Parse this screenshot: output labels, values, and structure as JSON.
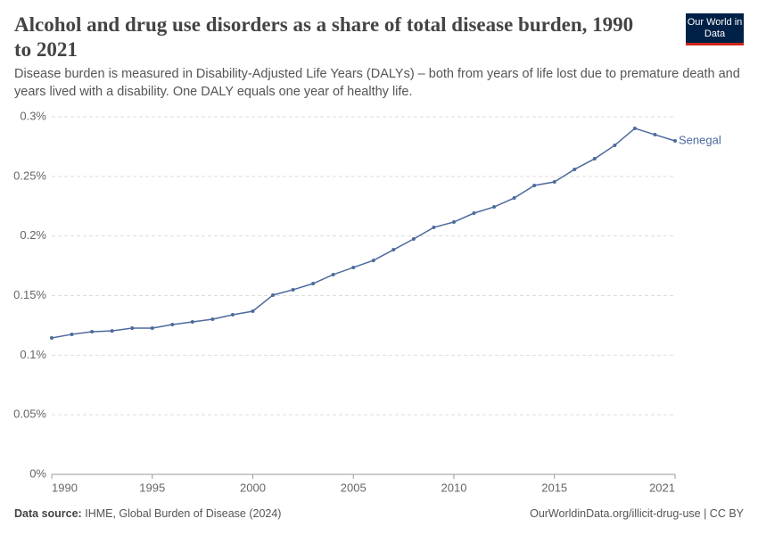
{
  "chart_data": {
    "type": "line",
    "title": "Alcohol and drug use disorders as a share of total disease burden, 1990 to 2021",
    "subtitle": "Disease burden is measured in Disability-Adjusted Life Years (DALYs) – both from years of life lost due to premature death and years lived with a disability. One DALY equals one year of healthy life.",
    "logo": "Our World in Data",
    "source_label": "Data source:",
    "source": "IHME, Global Burden of Disease (2024)",
    "url": "OurWorldinData.org/illicit-drug-use | CC BY",
    "x": [
      1990,
      1991,
      1992,
      1993,
      1994,
      1995,
      1996,
      1997,
      1998,
      1999,
      2000,
      2001,
      2002,
      2003,
      2004,
      2005,
      2006,
      2007,
      2008,
      2009,
      2010,
      2011,
      2012,
      2013,
      2014,
      2015,
      2016,
      2017,
      2018,
      2019,
      2020,
      2021
    ],
    "series": [
      {
        "name": "Senegal",
        "color": "#4c6a9c",
        "values": [
          0.1145,
          0.1175,
          0.1197,
          0.1204,
          0.1227,
          0.1227,
          0.1257,
          0.1279,
          0.1302,
          0.1339,
          0.1369,
          0.1504,
          0.1549,
          0.1601,
          0.1676,
          0.1736,
          0.1795,
          0.1885,
          0.1975,
          0.2072,
          0.2117,
          0.2192,
          0.2244,
          0.2319,
          0.2424,
          0.2454,
          0.2559,
          0.2648,
          0.2761,
          0.2903,
          0.285,
          0.2798
        ]
      }
    ],
    "xlim": [
      1990,
      2021
    ],
    "xticks": [
      1990,
      1995,
      2000,
      2005,
      2010,
      2015,
      2021
    ],
    "ylim": [
      0,
      0.3
    ],
    "yticks": [
      {
        "value": 0,
        "label": "0%"
      },
      {
        "value": 0.05,
        "label": "0.05%"
      },
      {
        "value": 0.1,
        "label": "0.1%"
      },
      {
        "value": 0.15,
        "label": "0.15%"
      },
      {
        "value": 0.2,
        "label": "0.2%"
      },
      {
        "value": 0.25,
        "label": "0.25%"
      },
      {
        "value": 0.3,
        "label": "0.3%"
      }
    ],
    "grid": true
  }
}
